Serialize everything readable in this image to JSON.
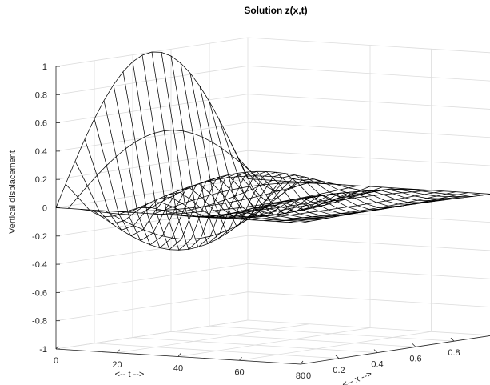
{
  "chart_data": {
    "type": "surface-mesh",
    "title": "Solution z(x,t)",
    "xlabel": "<-- x -->",
    "tlabel": "<-- t -->",
    "zlabel": "Vertical displacement",
    "x_range": [
      0,
      1
    ],
    "t_range": [
      0,
      80
    ],
    "z_range": [
      -1,
      1
    ],
    "x_ticks": [
      "0",
      "0.2",
      "0.4",
      "0.6",
      "0.8"
    ],
    "t_ticks": [
      "0",
      "20",
      "40",
      "60",
      "80"
    ],
    "z_ticks": [
      "1",
      "0.8",
      "0.6",
      "0.4",
      "0.2",
      "0",
      "-0.2",
      "-0.4",
      "-0.6",
      "-0.8",
      "-1"
    ],
    "x_samples": [
      0,
      0.05,
      0.1,
      0.15,
      0.2,
      0.25,
      0.3,
      0.35,
      0.4,
      0.45,
      0.5,
      0.55,
      0.6,
      0.65,
      0.7,
      0.75,
      0.8,
      0.85,
      0.9,
      0.95,
      1
    ],
    "t_samples": [
      0,
      4,
      8,
      12,
      16,
      20,
      24,
      28,
      32,
      36,
      40,
      44,
      48,
      52,
      56,
      60,
      64,
      68,
      72,
      76,
      80
    ],
    "mode_shape": "sin(pi*x)",
    "time_oscillation_period": 2,
    "envelope_max": [
      1.0,
      0.72,
      0.55,
      0.42,
      0.33,
      0.27,
      0.22,
      0.18,
      0.15,
      0.13,
      0.11,
      0.09,
      0.08,
      0.07,
      0.06,
      0.05,
      0.04,
      0.035,
      0.03,
      0.025,
      0.02
    ],
    "line_color": "#000000",
    "grid": true,
    "view": "3d"
  }
}
